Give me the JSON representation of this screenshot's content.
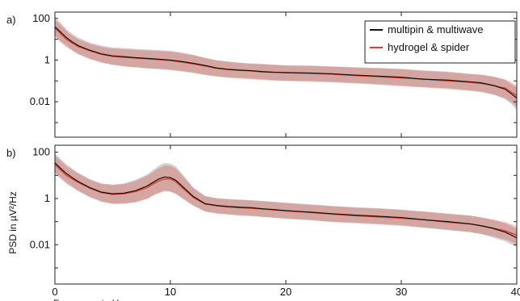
{
  "chart_data": [
    {
      "type": "line",
      "panel_label": "a)",
      "xlim": [
        0,
        40
      ],
      "ylim": [
        0.0002,
        200
      ],
      "yscale": "log",
      "yticks": [
        100,
        1,
        0.01
      ],
      "ytick_labels": [
        "100",
        "1",
        "0.01"
      ],
      "xticks": [
        0,
        10,
        20,
        30,
        40
      ],
      "xtick_labels": [
        "",
        "",
        "",
        "",
        ""
      ],
      "grid": false,
      "legend": "top-right",
      "x": [
        0,
        0.5,
        1,
        1.5,
        2,
        3,
        4,
        5,
        6,
        7,
        8,
        9,
        10,
        11,
        12,
        13,
        14,
        15,
        16,
        17,
        18,
        19,
        20,
        22,
        24,
        26,
        28,
        30,
        32,
        34,
        36,
        37,
        38,
        39,
        39.5,
        40
      ],
      "series": [
        {
          "name": "multipin & multiwave",
          "color": "#111111",
          "values": [
            40,
            22,
            12,
            7.5,
            5,
            3,
            2,
            1.6,
            1.45,
            1.3,
            1.2,
            1.1,
            1.0,
            0.85,
            0.7,
            0.55,
            0.42,
            0.36,
            0.33,
            0.31,
            0.28,
            0.26,
            0.25,
            0.24,
            0.22,
            0.19,
            0.17,
            0.15,
            0.12,
            0.11,
            0.09,
            0.08,
            0.06,
            0.04,
            0.025,
            0.015
          ],
          "band_lower": [
            15,
            8,
            5,
            3,
            2,
            1.2,
            0.8,
            0.6,
            0.5,
            0.45,
            0.4,
            0.38,
            0.35,
            0.3,
            0.25,
            0.2,
            0.17,
            0.15,
            0.14,
            0.13,
            0.12,
            0.11,
            0.1,
            0.1,
            0.09,
            0.08,
            0.07,
            0.06,
            0.05,
            0.045,
            0.035,
            0.03,
            0.022,
            0.013,
            0.008,
            0.004
          ],
          "band_upper": [
            110,
            60,
            30,
            18,
            12,
            7,
            5,
            4,
            3.8,
            3.4,
            3.2,
            3,
            2.8,
            2.3,
            1.8,
            1.3,
            1,
            0.85,
            0.75,
            0.7,
            0.65,
            0.6,
            0.55,
            0.55,
            0.5,
            0.45,
            0.42,
            0.38,
            0.32,
            0.28,
            0.22,
            0.2,
            0.16,
            0.11,
            0.07,
            0.05
          ]
        },
        {
          "name": "hydrogel & spider",
          "color": "#e03a2a",
          "values": [
            35,
            18,
            10,
            6.5,
            4.5,
            2.8,
            1.9,
            1.5,
            1.35,
            1.25,
            1.15,
            1.05,
            0.95,
            0.8,
            0.65,
            0.52,
            0.4,
            0.35,
            0.32,
            0.3,
            0.27,
            0.26,
            0.25,
            0.23,
            0.21,
            0.18,
            0.16,
            0.14,
            0.12,
            0.1,
            0.085,
            0.075,
            0.06,
            0.045,
            0.03,
            0.02
          ],
          "band_lower": [
            14,
            7,
            4,
            2.8,
            1.9,
            1.1,
            0.75,
            0.58,
            0.5,
            0.45,
            0.4,
            0.36,
            0.33,
            0.28,
            0.24,
            0.19,
            0.16,
            0.14,
            0.13,
            0.12,
            0.11,
            0.1,
            0.1,
            0.09,
            0.085,
            0.075,
            0.065,
            0.055,
            0.048,
            0.04,
            0.033,
            0.028,
            0.022,
            0.015,
            0.01,
            0.006
          ],
          "band_upper": [
            90,
            48,
            25,
            15,
            10,
            6,
            4.3,
            3.5,
            3.3,
            3.1,
            2.9,
            2.7,
            2.5,
            2.1,
            1.7,
            1.25,
            0.95,
            0.82,
            0.72,
            0.66,
            0.62,
            0.58,
            0.55,
            0.52,
            0.48,
            0.43,
            0.4,
            0.36,
            0.3,
            0.26,
            0.21,
            0.19,
            0.16,
            0.12,
            0.09,
            0.06
          ]
        }
      ]
    },
    {
      "type": "line",
      "panel_label": "b)",
      "xlim": [
        0,
        40
      ],
      "ylim": [
        0.0002,
        200
      ],
      "yscale": "log",
      "yticks": [
        100,
        1,
        0.01
      ],
      "ytick_labels": [
        "100",
        "1",
        "0.01"
      ],
      "xticks": [
        0,
        10,
        20,
        30,
        40
      ],
      "xtick_labels": [
        "0",
        "10",
        "20",
        "30",
        "40"
      ],
      "xlabel": "Frequency in Hz",
      "ylabel": "PSD in µV²/Hz",
      "grid": false,
      "x": [
        0,
        0.5,
        1,
        1.5,
        2,
        3,
        4,
        5,
        6,
        7,
        8,
        8.5,
        9,
        9.5,
        10,
        10.5,
        11,
        12,
        13,
        14,
        15,
        16,
        17,
        18,
        19,
        20,
        22,
        24,
        26,
        28,
        30,
        32,
        34,
        36,
        37,
        38,
        39,
        40
      ],
      "series": [
        {
          "name": "multipin & multiwave",
          "color": "#111111",
          "values": [
            35,
            20,
            12,
            8,
            5.5,
            3,
            1.9,
            1.6,
            1.7,
            2.2,
            3.5,
            5,
            7,
            8.5,
            8,
            6,
            3.5,
            1.2,
            0.6,
            0.5,
            0.45,
            0.42,
            0.4,
            0.36,
            0.33,
            0.3,
            0.26,
            0.22,
            0.19,
            0.17,
            0.15,
            0.12,
            0.1,
            0.08,
            0.065,
            0.05,
            0.035,
            0.02
          ],
          "band_lower": [
            14,
            8,
            5,
            3.3,
            2.2,
            1.2,
            0.75,
            0.6,
            0.6,
            0.7,
            1,
            1.4,
            1.8,
            2.2,
            2,
            1.6,
            1.1,
            0.5,
            0.28,
            0.23,
            0.21,
            0.19,
            0.18,
            0.16,
            0.15,
            0.14,
            0.12,
            0.1,
            0.09,
            0.08,
            0.07,
            0.055,
            0.045,
            0.035,
            0.028,
            0.02,
            0.014,
            0.008
          ],
          "band_upper": [
            90,
            50,
            30,
            20,
            13,
            7,
            4.5,
            4,
            4.5,
            6.5,
            11,
            17,
            26,
            34,
            32,
            24,
            12,
            3,
            1.3,
            1.05,
            0.95,
            0.9,
            0.85,
            0.78,
            0.72,
            0.66,
            0.56,
            0.48,
            0.42,
            0.38,
            0.33,
            0.27,
            0.22,
            0.18,
            0.15,
            0.12,
            0.085,
            0.05
          ]
        },
        {
          "name": "hydrogel & spider",
          "color": "#e03a2a",
          "values": [
            30,
            17,
            10,
            7,
            5,
            2.8,
            1.8,
            1.5,
            1.6,
            2,
            3,
            4.2,
            5.8,
            7,
            7,
            5.2,
            3,
            1.1,
            0.58,
            0.48,
            0.43,
            0.4,
            0.38,
            0.35,
            0.32,
            0.29,
            0.25,
            0.21,
            0.18,
            0.16,
            0.14,
            0.12,
            0.095,
            0.078,
            0.065,
            0.052,
            0.04,
            0.026
          ],
          "band_lower": [
            12,
            7,
            4.2,
            3,
            2.1,
            1.15,
            0.72,
            0.58,
            0.6,
            0.68,
            0.95,
            1.3,
            1.7,
            2,
            2,
            1.5,
            1,
            0.48,
            0.27,
            0.22,
            0.2,
            0.18,
            0.17,
            0.16,
            0.145,
            0.13,
            0.115,
            0.095,
            0.085,
            0.075,
            0.065,
            0.055,
            0.043,
            0.035,
            0.029,
            0.023,
            0.017,
            0.011
          ],
          "band_upper": [
            75,
            42,
            25,
            17,
            12,
            6.5,
            4.3,
            3.8,
            4.2,
            5.8,
            9.5,
            14,
            20,
            26,
            26,
            19,
            10,
            2.7,
            1.25,
            1,
            0.92,
            0.86,
            0.82,
            0.75,
            0.69,
            0.63,
            0.54,
            0.46,
            0.4,
            0.36,
            0.32,
            0.27,
            0.22,
            0.18,
            0.15,
            0.12,
            0.095,
            0.065
          ]
        }
      ]
    }
  ]
}
